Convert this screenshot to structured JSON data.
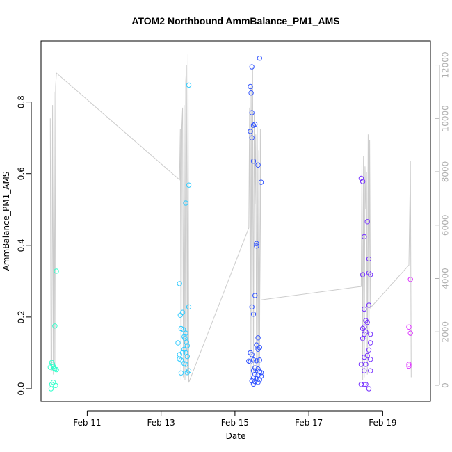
{
  "chart_data": {
    "type": "scatter",
    "title": "ATOM2 Northbound AmmBalance_PM1_AMS",
    "xlabel": "Date",
    "ylabel": "AmmBalance_PM1_AMS",
    "xlim": [
      "2025-02-09 18:00",
      "2025-02-20 07:00"
    ],
    "ylim": [
      -0.035,
      0.97
    ],
    "y2lim": [
      -600,
      12900
    ],
    "x_ticks": [
      {
        "label": "Feb 11",
        "date": "2025-02-11"
      },
      {
        "label": "Feb 13",
        "date": "2025-02-13"
      },
      {
        "label": "Feb 15",
        "date": "2025-02-15"
      },
      {
        "label": "Feb 17",
        "date": "2025-02-17"
      },
      {
        "label": "Feb 19",
        "date": "2025-02-19"
      }
    ],
    "y_ticks": [
      {
        "label": "0.0",
        "value": 0.0
      },
      {
        "label": "0.2",
        "value": 0.2
      },
      {
        "label": "0.4",
        "value": 0.4
      },
      {
        "label": "0.6",
        "value": 0.6
      },
      {
        "label": "0.8",
        "value": 0.8
      }
    ],
    "y2_ticks": [
      {
        "label": "0",
        "value": 0
      },
      {
        "label": "2000",
        "value": 2000
      },
      {
        "label": "4000",
        "value": 4000
      },
      {
        "label": "6000",
        "value": 6000
      },
      {
        "label": "8000",
        "value": 8000
      },
      {
        "label": "10000",
        "value": 10000
      },
      {
        "label": "12000",
        "value": 12000
      }
    ],
    "grid": false,
    "legend": "none",
    "colors": {
      "group1": "#33ffcc",
      "group2": "#33ccff",
      "group3": "#3355ff",
      "group4": "#7733ff",
      "group5": "#dd33ff",
      "line": "#cccccc",
      "axis": "#000000",
      "right_axis": "#b0b0b0"
    },
    "series": [
      {
        "group": "group1",
        "points": [
          [
            "2025-02-10 01:00",
            0.073
          ],
          [
            "2025-02-10 01:30",
            0.068
          ],
          [
            "2025-02-10 02:00",
            0.062
          ],
          [
            "2025-02-10 02:30",
            0.057
          ],
          [
            "2025-02-10 03:00",
            0.055
          ],
          [
            "2025-02-10 02:00",
            0.018
          ],
          [
            "2025-02-10 01:00",
            0.012
          ],
          [
            "2025-02-10 00:30",
            0.0
          ],
          [
            "2025-02-10 03:30",
            0.009
          ],
          [
            "2025-02-10 04:00",
            0.053
          ],
          [
            "2025-02-10 03:00",
            0.175
          ],
          [
            "2025-02-10 04:00",
            0.328
          ],
          [
            "2025-02-10 00:00",
            0.06
          ]
        ]
      },
      {
        "group": "group2",
        "points": [
          [
            "2025-02-13 11:00",
            0.128
          ],
          [
            "2025-02-13 12:00",
            0.293
          ],
          [
            "2025-02-13 12:30",
            0.205
          ],
          [
            "2025-02-13 13:00",
            0.168
          ],
          [
            "2025-02-13 14:00",
            0.213
          ],
          [
            "2025-02-13 14:30",
            0.165
          ],
          [
            "2025-02-13 15:00",
            0.145
          ],
          [
            "2025-02-13 16:00",
            0.155
          ],
          [
            "2025-02-13 15:30",
            0.14
          ],
          [
            "2025-02-13 16:30",
            0.13
          ],
          [
            "2025-02-13 17:00",
            0.12
          ],
          [
            "2025-02-13 12:00",
            0.095
          ],
          [
            "2025-02-13 12:00",
            0.083
          ],
          [
            "2025-02-13 13:00",
            0.08
          ],
          [
            "2025-02-13 14:00",
            0.1
          ],
          [
            "2025-02-13 15:00",
            0.11
          ],
          [
            "2025-02-13 16:00",
            0.1
          ],
          [
            "2025-02-13 17:00",
            0.09
          ],
          [
            "2025-02-13 15:00",
            0.07
          ],
          [
            "2025-02-13 16:00",
            0.068
          ],
          [
            "2025-02-13 13:00",
            0.044
          ],
          [
            "2025-02-13 17:00",
            0.045
          ],
          [
            "2025-02-13 18:00",
            0.05
          ],
          [
            "2025-02-13 16:00",
            0.518
          ],
          [
            "2025-02-13 18:00",
            0.568
          ],
          [
            "2025-02-13 18:00",
            0.228
          ],
          [
            "2025-02-13 18:00",
            0.847
          ]
        ]
      },
      {
        "group": "group3",
        "points": [
          [
            "2025-02-15 10:00",
            0.843
          ],
          [
            "2025-02-15 10:30",
            0.825
          ],
          [
            "2025-02-15 11:00",
            0.898
          ],
          [
            "2025-02-15 16:00",
            0.922
          ],
          [
            "2025-02-15 11:00",
            0.77
          ],
          [
            "2025-02-15 12:00",
            0.735
          ],
          [
            "2025-02-15 13:00",
            0.738
          ],
          [
            "2025-02-15 10:00",
            0.718
          ],
          [
            "2025-02-15 11:00",
            0.7
          ],
          [
            "2025-02-15 12:00",
            0.635
          ],
          [
            "2025-02-15 15:00",
            0.624
          ],
          [
            "2025-02-15 17:00",
            0.576
          ],
          [
            "2025-02-15 14:00",
            0.405
          ],
          [
            "2025-02-15 14:00",
            0.398
          ],
          [
            "2025-02-15 13:00",
            0.26
          ],
          [
            "2025-02-15 11:00",
            0.228
          ],
          [
            "2025-02-15 12:00",
            0.208
          ],
          [
            "2025-02-15 15:00",
            0.142
          ],
          [
            "2025-02-15 14:00",
            0.122
          ],
          [
            "2025-02-15 16:00",
            0.115
          ],
          [
            "2025-02-15 15:00",
            0.11
          ],
          [
            "2025-02-15 10:00",
            0.1
          ],
          [
            "2025-02-15 11:00",
            0.095
          ],
          [
            "2025-02-15 09:00",
            0.077
          ],
          [
            "2025-02-15 10:00",
            0.075
          ],
          [
            "2025-02-15 12:00",
            0.08
          ],
          [
            "2025-02-15 14:00",
            0.078
          ],
          [
            "2025-02-15 16:00",
            0.08
          ],
          [
            "2025-02-15 13:00",
            0.058
          ],
          [
            "2025-02-15 15:00",
            0.055
          ],
          [
            "2025-02-15 12:00",
            0.05
          ],
          [
            "2025-02-15 16:00",
            0.048
          ],
          [
            "2025-02-15 17:00",
            0.045
          ],
          [
            "2025-02-15 13:00",
            0.04
          ],
          [
            "2025-02-15 15:00",
            0.038
          ],
          [
            "2025-02-15 17:00",
            0.035
          ],
          [
            "2025-02-15 12:00",
            0.03
          ],
          [
            "2025-02-15 14:00",
            0.028
          ],
          [
            "2025-02-15 16:00",
            0.025
          ],
          [
            "2025-02-15 11:00",
            0.022
          ],
          [
            "2025-02-15 13:00",
            0.02
          ],
          [
            "2025-02-15 15:00",
            0.018
          ],
          [
            "2025-02-15 12:00",
            0.013
          ]
        ]
      },
      {
        "group": "group4",
        "points": [
          [
            "2025-02-18 10:00",
            0.587
          ],
          [
            "2025-02-18 11:00",
            0.578
          ],
          [
            "2025-02-18 14:00",
            0.466
          ],
          [
            "2025-02-18 12:00",
            0.424
          ],
          [
            "2025-02-18 15:00",
            0.362
          ],
          [
            "2025-02-18 15:00",
            0.323
          ],
          [
            "2025-02-18 16:00",
            0.318
          ],
          [
            "2025-02-18 11:00",
            0.318
          ],
          [
            "2025-02-18 15:00",
            0.233
          ],
          [
            "2025-02-18 12:00",
            0.222
          ],
          [
            "2025-02-18 13:00",
            0.19
          ],
          [
            "2025-02-18 14:00",
            0.185
          ],
          [
            "2025-02-18 12:00",
            0.172
          ],
          [
            "2025-02-18 11:00",
            0.168
          ],
          [
            "2025-02-18 13:00",
            0.158
          ],
          [
            "2025-02-18 12:00",
            0.152
          ],
          [
            "2025-02-18 16:00",
            0.152
          ],
          [
            "2025-02-18 11:00",
            0.14
          ],
          [
            "2025-02-18 16:00",
            0.128
          ],
          [
            "2025-02-18 15:00",
            0.108
          ],
          [
            "2025-02-18 14:00",
            0.092
          ],
          [
            "2025-02-18 12:00",
            0.088
          ],
          [
            "2025-02-18 16:00",
            0.082
          ],
          [
            "2025-02-18 10:00",
            0.068
          ],
          [
            "2025-02-18 13:00",
            0.068
          ],
          [
            "2025-02-18 12:00",
            0.05
          ],
          [
            "2025-02-18 16:00",
            0.05
          ],
          [
            "2025-02-18 10:00",
            0.012
          ],
          [
            "2025-02-18 12:00",
            0.012
          ],
          [
            "2025-02-18 13:00",
            0.012
          ],
          [
            "2025-02-18 15:00",
            0.0
          ]
        ]
      },
      {
        "group": "group5",
        "points": [
          [
            "2025-02-19 18:00",
            0.305
          ],
          [
            "2025-02-19 17:00",
            0.172
          ],
          [
            "2025-02-19 18:00",
            0.155
          ],
          [
            "2025-02-19 17:00",
            0.068
          ],
          [
            "2025-02-19 17:00",
            0.063
          ]
        ]
      }
    ],
    "line_series": [
      [
        "2025-02-10 00:00",
        10000
      ],
      [
        "2025-02-10 00:30",
        500
      ],
      [
        "2025-02-10 01:00",
        600
      ],
      [
        "2025-02-10 01:30",
        10500
      ],
      [
        "2025-02-10 02:00",
        400
      ],
      [
        "2025-02-10 02:30",
        11000
      ],
      [
        "2025-02-10 03:00",
        700
      ],
      [
        "2025-02-10 03:30",
        11200
      ],
      [
        "2025-02-10 04:00",
        11700
      ],
      [
        "2025-02-13 12:00",
        7700
      ],
      [
        "2025-02-13 12:30",
        9600
      ],
      [
        "2025-02-13 13:00",
        200
      ],
      [
        "2025-02-13 13:30",
        9700
      ],
      [
        "2025-02-13 14:00",
        10400
      ],
      [
        "2025-02-13 14:30",
        300
      ],
      [
        "2025-02-13 15:00",
        10500
      ],
      [
        "2025-02-13 15:30",
        200
      ],
      [
        "2025-02-13 16:00",
        11400
      ],
      [
        "2025-02-13 16:30",
        12000
      ],
      [
        "2025-02-13 17:00",
        400
      ],
      [
        "2025-02-13 17:30",
        12400
      ],
      [
        "2025-02-13 18:00",
        100
      ],
      [
        "2025-02-15 09:00",
        5900
      ],
      [
        "2025-02-15 09:30",
        10400
      ],
      [
        "2025-02-15 10:00",
        300
      ],
      [
        "2025-02-15 10:30",
        11200
      ],
      [
        "2025-02-15 11:00",
        400
      ],
      [
        "2025-02-15 11:30",
        11900
      ],
      [
        "2025-02-15 12:00",
        500
      ],
      [
        "2025-02-15 12:30",
        10200
      ],
      [
        "2025-02-15 13:00",
        6800
      ],
      [
        "2025-02-15 13:30",
        9400
      ],
      [
        "2025-02-15 14:00",
        400
      ],
      [
        "2025-02-15 14:30",
        9700
      ],
      [
        "2025-02-15 15:00",
        600
      ],
      [
        "2025-02-15 15:30",
        8800
      ],
      [
        "2025-02-15 16:00",
        700
      ],
      [
        "2025-02-15 16:30",
        9600
      ],
      [
        "2025-02-15 17:00",
        3200
      ],
      [
        "2025-02-18 10:00",
        3700
      ],
      [
        "2025-02-18 10:30",
        8400
      ],
      [
        "2025-02-18 11:00",
        200
      ],
      [
        "2025-02-18 11:30",
        8600
      ],
      [
        "2025-02-18 12:00",
        300
      ],
      [
        "2025-02-18 12:30",
        8200
      ],
      [
        "2025-02-18 13:00",
        6600
      ],
      [
        "2025-02-18 13:30",
        8000
      ],
      [
        "2025-02-18 14:00",
        400
      ],
      [
        "2025-02-18 14:30",
        9400
      ],
      [
        "2025-02-18 15:00",
        500
      ],
      [
        "2025-02-18 15:30",
        9200
      ],
      [
        "2025-02-18 16:00",
        2900
      ],
      [
        "2025-02-19 17:00",
        4500
      ],
      [
        "2025-02-19 18:00",
        8400
      ],
      [
        "2025-02-19 18:30",
        300
      ]
    ]
  }
}
